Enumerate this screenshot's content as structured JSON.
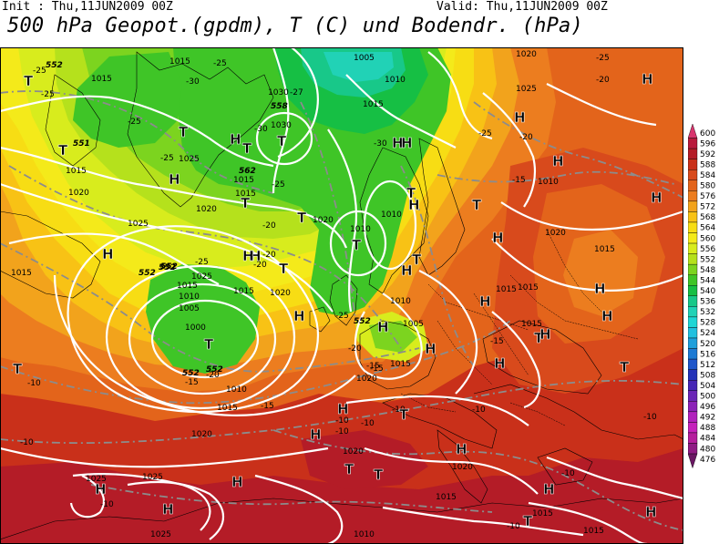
{
  "header": {
    "init": "Init : Thu,11JUN2009 00Z",
    "valid": "Valid: Thu,11JUN2009 00Z",
    "title": "500 hPa Geopot.(gpdm), T (C) und Bodendr. (hPa)"
  },
  "colors": {
    "c600": "#d8356e",
    "c596": "#b81a3c",
    "c592": "#b41c27",
    "c588": "#c9301a",
    "c584": "#d84a1c",
    "c580": "#e3641b",
    "c576": "#ec7d1f",
    "c572": "#f2a31c",
    "c568": "#f8c215",
    "c564": "#f7dd14",
    "c560": "#f4ea1a",
    "c556": "#d8ec1d",
    "c552": "#b5e11c",
    "c548": "#7cd41f",
    "c544": "#3fc527",
    "c540": "#16bf44",
    "c536": "#18c889",
    "c532": "#21d2b6",
    "c528": "#1fd6d5",
    "c524": "#21c0df",
    "c520": "#1e9fdb",
    "c516": "#1d7ad4",
    "c512": "#1f56ca",
    "c508": "#2432b8",
    "c504": "#4626b5",
    "c500": "#6a26b6",
    "c496": "#8c22b8",
    "c492": "#b122bd",
    "c488": "#c523bc",
    "c484": "#b51f9d",
    "c480": "#8f1b84",
    "c476": "#6a1763"
  },
  "legend": {
    "values": [
      "600",
      "596",
      "592",
      "588",
      "584",
      "580",
      "576",
      "572",
      "568",
      "564",
      "560",
      "556",
      "552",
      "548",
      "544",
      "540",
      "536",
      "532",
      "528",
      "524",
      "520",
      "516",
      "512",
      "508",
      "504",
      "500",
      "496",
      "492",
      "488",
      "484",
      "480",
      "476"
    ]
  },
  "isobar_labels": [
    "1015",
    "1015",
    "1005",
    "1010",
    "1020",
    "1025",
    "1015",
    "1030",
    "1030",
    "1020",
    "1025",
    "1015",
    "1020",
    "1015",
    "1010",
    "1010",
    "1015",
    "1020",
    "1025",
    "1015",
    "1025",
    "1015",
    "1015",
    "1015",
    "1010",
    "1005",
    "1000",
    "1015",
    "1010",
    "1020",
    "1020",
    "1015",
    "1010",
    "1005",
    "1015",
    "1020",
    "1015",
    "1025",
    "1025",
    "1020",
    "1025",
    "1015",
    "1015",
    "1010",
    "1015",
    "1015",
    "1020",
    "1010",
    "1020"
  ],
  "temp_labels": [
    "-25",
    "-25",
    "-25",
    "-30",
    "-25",
    "-25",
    "-30",
    "-27",
    "-30",
    "-25",
    "-25",
    "-20",
    "-25",
    "-20",
    "-20",
    "-20",
    "-20",
    "-25",
    "-15",
    "-25",
    "-20",
    "-15",
    "-20",
    "-15",
    "-15",
    "-10",
    "-15",
    "-10",
    "-10",
    "-10",
    "-10",
    "-10",
    "-10",
    "-10",
    "-10",
    "-10",
    "-10",
    "-15"
  ],
  "height_labels": [
    "552",
    "552",
    "551",
    "558",
    "562",
    "552",
    "552",
    "552",
    "552",
    "552"
  ],
  "pressure_systems": [
    "T",
    "T",
    "T",
    "T",
    "T",
    "T",
    "T",
    "T",
    "T",
    "T",
    "T",
    "T",
    "T",
    "T",
    "T",
    "T",
    "T",
    "T",
    "T",
    "T",
    "H",
    "H",
    "H",
    "H",
    "H",
    "H",
    "H",
    "H",
    "H",
    "H",
    "H",
    "H",
    "H",
    "H",
    "H",
    "H",
    "H",
    "H",
    "H",
    "H",
    "H",
    "H",
    "H",
    "H",
    "H",
    "H",
    "H",
    "H",
    "H",
    "H"
  ]
}
